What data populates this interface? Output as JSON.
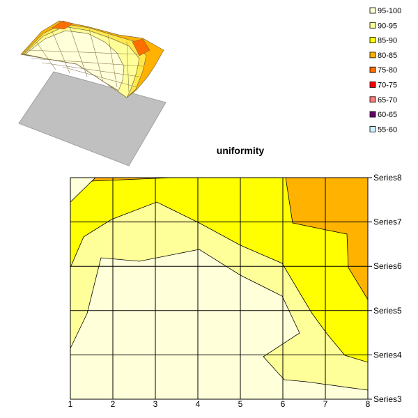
{
  "chart_data": [
    {
      "type": "surface-3d",
      "note_rows": "thumbnail view of the same surface"
    },
    {
      "type": "contour",
      "title": "uniformity",
      "x": [
        1,
        2,
        3,
        4,
        5,
        6,
        7,
        8
      ],
      "xlim": [
        1,
        8
      ],
      "series": [
        {
          "name": "Series3"
        },
        {
          "name": "Series4"
        },
        {
          "name": "Series5"
        },
        {
          "name": "Series6"
        },
        {
          "name": "Series7"
        },
        {
          "name": "Series8"
        }
      ],
      "grid": true,
      "legend_position": "top-right",
      "legend": [
        {
          "label": "95-100",
          "color": "#FFFFD9"
        },
        {
          "label": "90-95",
          "color": "#FFFF99"
        },
        {
          "label": "85-90",
          "color": "#FFFF00"
        },
        {
          "label": "80-85",
          "color": "#FFB300"
        },
        {
          "label": "75-80",
          "color": "#FF6F00"
        },
        {
          "label": "70-75",
          "color": "#FF0000"
        },
        {
          "label": "65-70",
          "color": "#FF7A7A"
        },
        {
          "label": "60-65",
          "color": "#660066"
        },
        {
          "label": "55-60",
          "color": "#CCF2FF"
        }
      ],
      "bands_present": [
        "95-100",
        "90-95",
        "85-90",
        "80-85"
      ]
    }
  ]
}
